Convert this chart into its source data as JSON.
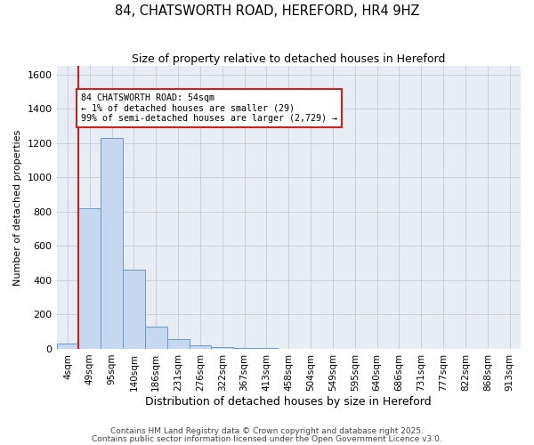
{
  "title1": "84, CHATSWORTH ROAD, HEREFORD, HR4 9HZ",
  "title2": "Size of property relative to detached houses in Hereford",
  "xlabel": "Distribution of detached houses by size in Hereford",
  "ylabel": "Number of detached properties",
  "categories": [
    "4sqm",
    "49sqm",
    "95sqm",
    "140sqm",
    "186sqm",
    "231sqm",
    "276sqm",
    "322sqm",
    "367sqm",
    "413sqm",
    "458sqm",
    "504sqm",
    "549sqm",
    "595sqm",
    "640sqm",
    "686sqm",
    "731sqm",
    "777sqm",
    "822sqm",
    "868sqm",
    "913sqm"
  ],
  "values": [
    29,
    820,
    1230,
    460,
    130,
    55,
    20,
    10,
    5,
    3,
    2,
    1,
    1,
    0,
    0,
    0,
    0,
    0,
    0,
    0,
    0
  ],
  "bar_color": "#c5d8ef",
  "bar_edge_color": "#6699cc",
  "grid_color": "#c8d0de",
  "background_color": "#e8ecf5",
  "vline_color": "#cc2222",
  "annotation_text": "84 CHATSWORTH ROAD: 54sqm\n← 1% of detached houses are smaller (29)\n99% of semi-detached houses are larger (2,729) →",
  "annotation_box_color": "#cc2222",
  "footnote1": "Contains HM Land Registry data © Crown copyright and database right 2025.",
  "footnote2": "Contains public sector information licensed under the Open Government Licence v3.0.",
  "ylim": [
    0,
    1650
  ],
  "yticks": [
    0,
    200,
    400,
    600,
    800,
    1000,
    1200,
    1400,
    1600
  ]
}
